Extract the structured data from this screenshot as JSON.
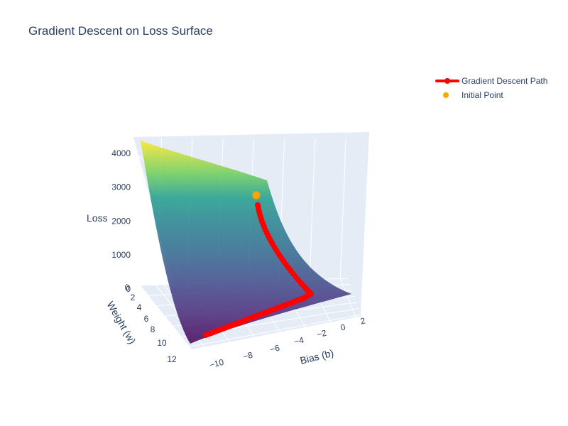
{
  "chart_data": {
    "type": "surface3d",
    "title": "Gradient Descent on Loss Surface",
    "axes": {
      "x": {
        "label": "Bias (b)",
        "range": [
          -11,
          2.5
        ],
        "ticks": [
          "−10",
          "−8",
          "−6",
          "−4",
          "−2",
          "0",
          "2"
        ]
      },
      "y": {
        "label": "Weight (w)",
        "range": [
          0,
          12.5
        ],
        "ticks": [
          "0",
          "2",
          "4",
          "6",
          "8",
          "10",
          "12"
        ]
      },
      "z": {
        "label": "Loss",
        "range": [
          0,
          4500
        ],
        "ticks": [
          "0",
          "1000",
          "2000",
          "3000",
          "4000"
        ]
      }
    },
    "surface": {
      "colorscale": "Viridis",
      "z_min": 0,
      "z_max": 4400
    },
    "series": [
      {
        "name": "Gradient Descent Path",
        "color": "#ff0000",
        "mode": "lines+markers",
        "points": [
          {
            "b": -0.1,
            "w": 0.8,
            "loss": 2800
          },
          {
            "b": -0.2,
            "w": 1.6,
            "loss": 2250
          },
          {
            "b": -0.3,
            "w": 2.4,
            "loss": 1780
          },
          {
            "b": -0.4,
            "w": 3.2,
            "loss": 1380
          },
          {
            "b": -0.5,
            "w": 4.0,
            "loss": 1040
          },
          {
            "b": -0.6,
            "w": 4.8,
            "loss": 760
          },
          {
            "b": -0.7,
            "w": 5.6,
            "loss": 540
          },
          {
            "b": -0.8,
            "w": 6.4,
            "loss": 360
          },
          {
            "b": -0.9,
            "w": 7.2,
            "loss": 230
          },
          {
            "b": -1.0,
            "w": 8.0,
            "loss": 130
          },
          {
            "b": -1.1,
            "w": 8.6,
            "loss": 70
          },
          {
            "b": -1.3,
            "w": 9.0,
            "loss": 40
          },
          {
            "b": -2.0,
            "w": 9.2,
            "loss": 30
          },
          {
            "b": -3.0,
            "w": 9.3,
            "loss": 25
          },
          {
            "b": -4.0,
            "w": 9.4,
            "loss": 20
          },
          {
            "b": -5.0,
            "w": 9.5,
            "loss": 17
          },
          {
            "b": -6.0,
            "w": 9.6,
            "loss": 14
          },
          {
            "b": -7.0,
            "w": 9.7,
            "loss": 12
          },
          {
            "b": -8.0,
            "w": 9.8,
            "loss": 10
          },
          {
            "b": -9.0,
            "w": 9.85,
            "loss": 9
          },
          {
            "b": -10.0,
            "w": 9.9,
            "loss": 8
          }
        ]
      },
      {
        "name": "Initial Point",
        "color": "#ffa500",
        "mode": "markers",
        "points": [
          {
            "b": 0.0,
            "w": 0.0,
            "loss": 2850
          }
        ]
      }
    ],
    "legend": "top-right"
  }
}
